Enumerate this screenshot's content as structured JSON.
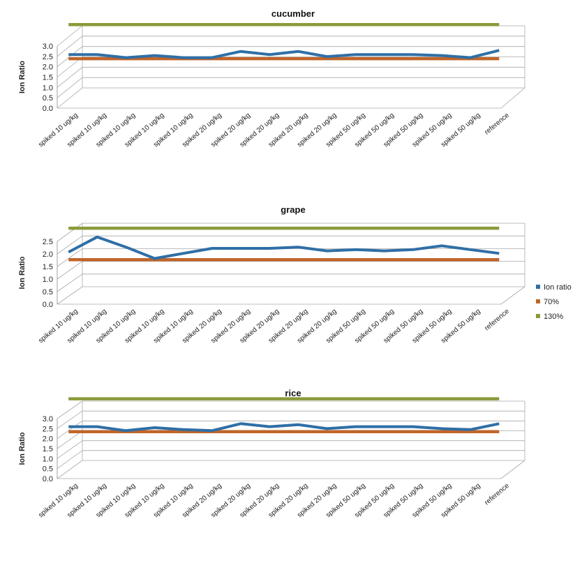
{
  "legend": {
    "items": [
      {
        "label": "Ion ratio",
        "color": "#2f6fa6"
      },
      {
        "label": "70%",
        "color": "#c0652a"
      },
      {
        "label": "130%",
        "color": "#8a9a3a"
      }
    ],
    "placement": "right"
  },
  "chart_data": [
    {
      "type": "line",
      "title": "cucumber",
      "ylabel": "Ion Ratio",
      "xlabel": "",
      "ylim": [
        0,
        3.0
      ],
      "yticks": [
        "3.0",
        "2.5",
        "2.0",
        "1.5",
        "1.0",
        "0.5",
        "0.0"
      ],
      "yticks_values": [
        3.0,
        2.5,
        2.0,
        1.5,
        1.0,
        0.5,
        0.0
      ],
      "categories": [
        "spiked 10 ug/kg",
        "spiked 10 ug/kg",
        "spiked 10 ug/kg",
        "spiked 10 ug/kg",
        "spiked 10 ug/kg",
        "spiked 20 ug/kg",
        "spiked 20 ug/kg",
        "spiked 20 ug/kg",
        "spiked 20 ug/kg",
        "spiked 20 ug/kg",
        "spiked 50 ug/kg",
        "spiked 50 ug/kg",
        "spiked 50 ug/kg",
        "spiked 50 ug/kg",
        "spiked 50 ug/kg",
        "reference"
      ],
      "series": [
        {
          "name": "Ion ratio",
          "values": [
            2.15,
            2.15,
            2.0,
            2.1,
            2.0,
            2.0,
            2.3,
            2.15,
            2.3,
            2.05,
            2.15,
            2.15,
            2.15,
            2.1,
            2.0,
            2.35
          ]
        },
        {
          "name": "70%",
          "values": [
            1.95,
            1.95,
            1.95,
            1.95,
            1.95,
            1.95,
            1.95,
            1.95,
            1.95,
            1.95,
            1.95,
            1.95,
            1.95,
            1.95,
            1.95,
            1.95
          ]
        },
        {
          "name": "130%",
          "values": [
            3.6,
            3.6,
            3.6,
            3.6,
            3.6,
            3.6,
            3.6,
            3.6,
            3.6,
            3.6,
            3.6,
            3.6,
            3.6,
            3.6,
            3.6,
            3.6
          ]
        }
      ],
      "grid": true
    },
    {
      "type": "line",
      "title": "grape",
      "ylabel": "Ion Ratio",
      "xlabel": "",
      "ylim": [
        0,
        2.5
      ],
      "yticks": [
        "2.5",
        "2.0",
        "1.5",
        "1.0",
        "0.5",
        "0.0"
      ],
      "yticks_values": [
        2.5,
        2.0,
        1.5,
        1.0,
        0.5,
        0.0
      ],
      "categories": [
        "spiked 10 ug/kg",
        "spiked 10 ug/kg",
        "spiked 10 ug/kg",
        "spiked 10 ug/kg",
        "spiked 10 ug/kg",
        "spiked 20 ug/kg",
        "spiked 20 ug/kg",
        "spiked 20 ug/kg",
        "spiked 20 ug/kg",
        "spiked 20 ug/kg",
        "spiked 50 ug/kg",
        "spiked 50 ug/kg",
        "spiked 50 ug/kg",
        "spiked 50 ug/kg",
        "spiked 50 ug/kg",
        "reference"
      ],
      "series": [
        {
          "name": "Ion ratio",
          "values": [
            1.75,
            2.35,
            1.95,
            1.5,
            1.7,
            1.9,
            1.9,
            1.9,
            1.95,
            1.8,
            1.85,
            1.8,
            1.85,
            2.0,
            1.85,
            1.7
          ]
        },
        {
          "name": "70%",
          "values": [
            1.45,
            1.45,
            1.45,
            1.45,
            1.45,
            1.45,
            1.45,
            1.45,
            1.45,
            1.45,
            1.45,
            1.45,
            1.45,
            1.45,
            1.45,
            1.45
          ]
        },
        {
          "name": "130%",
          "values": [
            2.7,
            2.7,
            2.7,
            2.7,
            2.7,
            2.7,
            2.7,
            2.7,
            2.7,
            2.7,
            2.7,
            2.7,
            2.7,
            2.7,
            2.7,
            2.7
          ]
        }
      ],
      "grid": true
    },
    {
      "type": "line",
      "title": "rice",
      "ylabel": "Ion Ratio",
      "xlabel": "",
      "ylim": [
        0,
        3.0
      ],
      "yticks": [
        "3.0",
        "2.5",
        "2.0",
        "1.5",
        "1.0",
        "0.5",
        "0.0"
      ],
      "yticks_values": [
        3.0,
        2.5,
        2.0,
        1.5,
        1.0,
        0.5,
        0.0
      ],
      "categories": [
        "spiked 10 ug/kg",
        "spiked 10 ug/kg",
        "spiked 10 ug/kg",
        "spiked 10 ug/kg",
        "spiked 10 ug/kg",
        "spiked 20 ug/kg",
        "spiked 20 ug/kg",
        "spiked 20 ug/kg",
        "spiked 20 ug/kg",
        "spiked 20 ug/kg",
        "spiked 50 ug/kg",
        "spiked 50 ug/kg",
        "spiked 50 ug/kg",
        "spiked 50 ug/kg",
        "spiked 50 ug/kg",
        "reference"
      ],
      "series": [
        {
          "name": "Ion ratio",
          "values": [
            2.2,
            2.2,
            2.0,
            2.15,
            2.05,
            2.0,
            2.35,
            2.2,
            2.3,
            2.1,
            2.2,
            2.2,
            2.2,
            2.1,
            2.05,
            2.35
          ]
        },
        {
          "name": "70%",
          "values": [
            1.95,
            1.95,
            1.95,
            1.95,
            1.95,
            1.95,
            1.95,
            1.95,
            1.95,
            1.95,
            1.95,
            1.95,
            1.95,
            1.95,
            1.95,
            1.95
          ]
        },
        {
          "name": "130%",
          "values": [
            3.6,
            3.6,
            3.6,
            3.6,
            3.6,
            3.6,
            3.6,
            3.6,
            3.6,
            3.6,
            3.6,
            3.6,
            3.6,
            3.6,
            3.6,
            3.6
          ]
        }
      ],
      "grid": true
    }
  ]
}
